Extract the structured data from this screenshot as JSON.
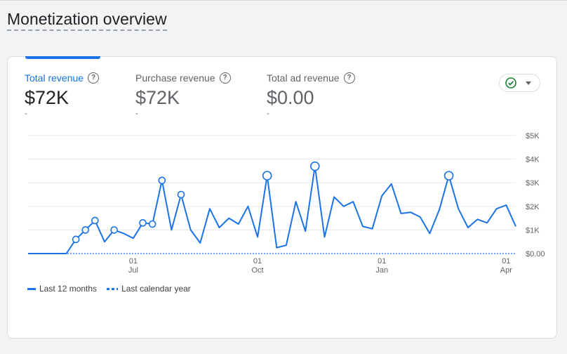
{
  "page": {
    "title": "Monetization overview"
  },
  "metrics": [
    {
      "label": "Total revenue",
      "value": "$72K",
      "change": "-"
    },
    {
      "label": "Purchase revenue",
      "value": "$72K",
      "change": "-"
    },
    {
      "label": "Total ad revenue",
      "value": "$0.00",
      "change": "-"
    }
  ],
  "status_chip": {
    "icon": "check-circle-icon",
    "color": "#188038"
  },
  "legend": {
    "series_a": "Last 12 months",
    "series_b": "Last calendar year"
  },
  "colors": {
    "accent": "#1a73e8"
  },
  "chart_data": {
    "type": "line",
    "y_ticks": [
      "$5K",
      "$4K",
      "$3K",
      "$2K",
      "$1K",
      "$0.00"
    ],
    "ylim": [
      0,
      5000
    ],
    "x_ticks": [
      {
        "day": "01",
        "month": "Jul",
        "index": 11
      },
      {
        "day": "01",
        "month": "Oct",
        "index": 24
      },
      {
        "day": "01",
        "month": "Jan",
        "index": 37
      },
      {
        "day": "01",
        "month": "Apr",
        "index": 50
      }
    ],
    "series": [
      {
        "values": [
          0,
          0,
          0,
          0,
          0,
          600,
          1000,
          1400,
          500,
          1000,
          850,
          650,
          1300,
          1250,
          3100,
          1000,
          2500,
          1000,
          450,
          1900,
          1100,
          1500,
          1250,
          2000,
          700,
          3300,
          250,
          350,
          2200,
          950,
          3700,
          700,
          2400,
          2000,
          2200,
          1150,
          1050,
          2450,
          2950,
          1700,
          1750,
          1550,
          850,
          1850,
          3300,
          1900,
          1100,
          1450,
          1300,
          1900,
          2050,
          1150
        ],
        "markers": [
          5,
          6,
          7,
          9,
          12,
          13,
          14,
          16,
          25,
          30,
          44
        ]
      }
    ],
    "grid": true,
    "legend_position": "bottom-left"
  }
}
